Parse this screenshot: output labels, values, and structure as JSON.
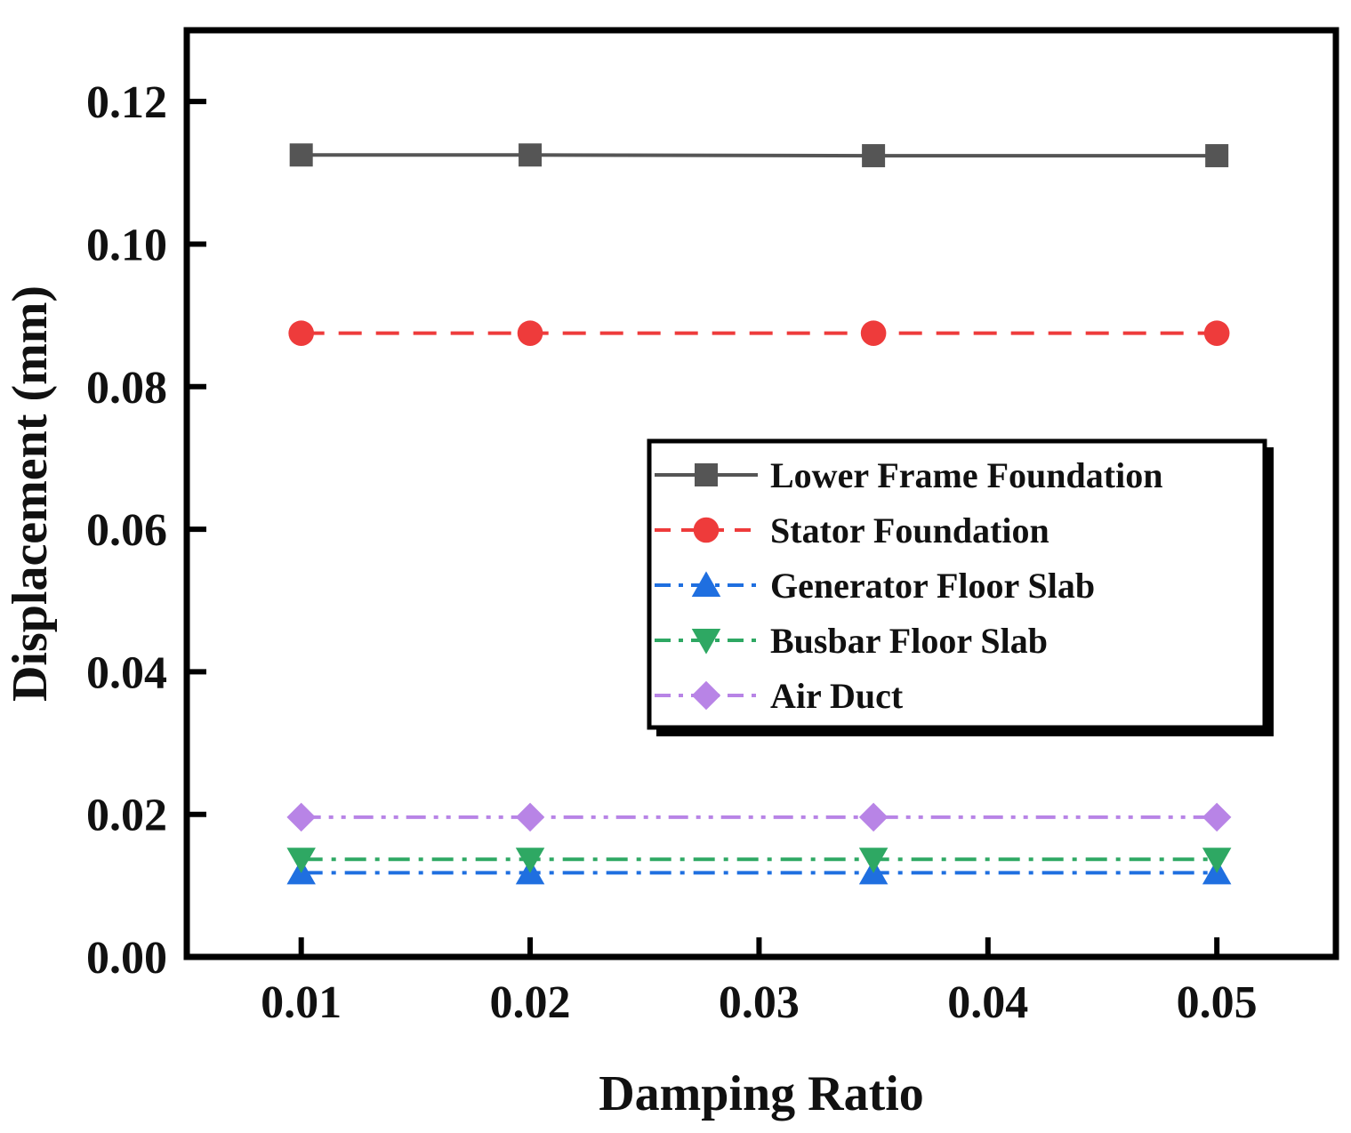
{
  "chart_data": {
    "type": "line",
    "title": "",
    "xlabel": "Damping Ratio",
    "ylabel": "Displacement (mm)",
    "x": [
      0.01,
      0.02,
      0.035,
      0.05
    ],
    "xlim": [
      0.005,
      0.0552
    ],
    "ylim": [
      0,
      0.13
    ],
    "xticks": [
      0.01,
      0.02,
      0.03,
      0.04,
      0.05
    ],
    "xtick_labels": [
      "0.01",
      "0.02",
      "0.03",
      "0.04",
      "0.05"
    ],
    "yticks": [
      0,
      0.02,
      0.04,
      0.06,
      0.08,
      0.1,
      0.12
    ],
    "ytick_labels": [
      "0.00",
      "0.02",
      "0.04",
      "0.06",
      "0.08",
      "0.10",
      "0.12"
    ],
    "grid": false,
    "legend_position": "right",
    "series": [
      {
        "name": "Lower Frame Foundation",
        "values": [
          0.1125,
          0.1125,
          0.1124,
          0.1124
        ],
        "color": "#555555",
        "marker": "square",
        "dash": "solid"
      },
      {
        "name": "Stator Foundation",
        "values": [
          0.0875,
          0.0875,
          0.0875,
          0.0875
        ],
        "color": "#ee3b3b",
        "marker": "circle",
        "dash": "dash"
      },
      {
        "name": "Generator Floor Slab",
        "values": [
          0.0118,
          0.0118,
          0.0118,
          0.0118
        ],
        "color": "#1f6fe0",
        "marker": "triangle-up",
        "dash": "dashdot"
      },
      {
        "name": "Busbar Floor Slab",
        "values": [
          0.0137,
          0.0137,
          0.0137,
          0.0137
        ],
        "color": "#2ea863",
        "marker": "triangle-down",
        "dash": "dashdot"
      },
      {
        "name": "Air Duct",
        "values": [
          0.0196,
          0.0196,
          0.0196,
          0.0196
        ],
        "color": "#b884e6",
        "marker": "diamond",
        "dash": "dashdotdot"
      }
    ]
  }
}
